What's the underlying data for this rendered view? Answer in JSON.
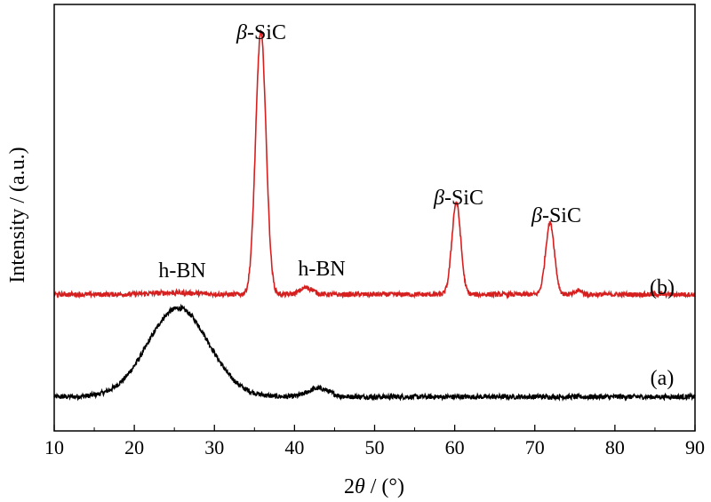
{
  "chart_data": {
    "type": "line",
    "xlabel": {
      "pre": "2",
      "theta": "θ",
      "post": " / (°)"
    },
    "ylabel": "Intensity / (a.u.)",
    "xlim": [
      10,
      90
    ],
    "x_ticks": [
      "10",
      "20",
      "30",
      "40",
      "50",
      "60",
      "70",
      "80",
      "90"
    ],
    "y_ticks": [],
    "grid": false,
    "legend": "none",
    "series": [
      {
        "name": "(a)",
        "color": "#000000",
        "baseline": 1.0,
        "noise": 0.07,
        "peaks": [
          {
            "x": 25.5,
            "height": 2.6,
            "width": 3.8
          },
          {
            "x": 43.0,
            "height": 0.25,
            "width": 1.3
          }
        ]
      },
      {
        "name": "(b)",
        "color": "#d62020",
        "baseline": 4.0,
        "noise": 0.07,
        "peaks": [
          {
            "x": 25.0,
            "height": 0.05,
            "width": 3.0
          },
          {
            "x": 35.8,
            "height": 7.7,
            "width": 0.65
          },
          {
            "x": 41.5,
            "height": 0.2,
            "width": 0.8
          },
          {
            "x": 60.2,
            "height": 2.7,
            "width": 0.55
          },
          {
            "x": 71.9,
            "height": 2.1,
            "width": 0.55
          },
          {
            "x": 75.5,
            "height": 0.12,
            "width": 0.4
          }
        ]
      }
    ],
    "annotations": [
      {
        "id": "bsic1",
        "prefix": "β",
        "text": "-SiC"
      },
      {
        "id": "bsic2",
        "prefix": "β",
        "text": "-SiC"
      },
      {
        "id": "bsic3",
        "prefix": "β",
        "text": "-SiC"
      },
      {
        "id": "hbn1",
        "prefix": "",
        "text": "h-BN"
      },
      {
        "id": "hbn2",
        "prefix": "",
        "text": "h-BN"
      }
    ]
  }
}
